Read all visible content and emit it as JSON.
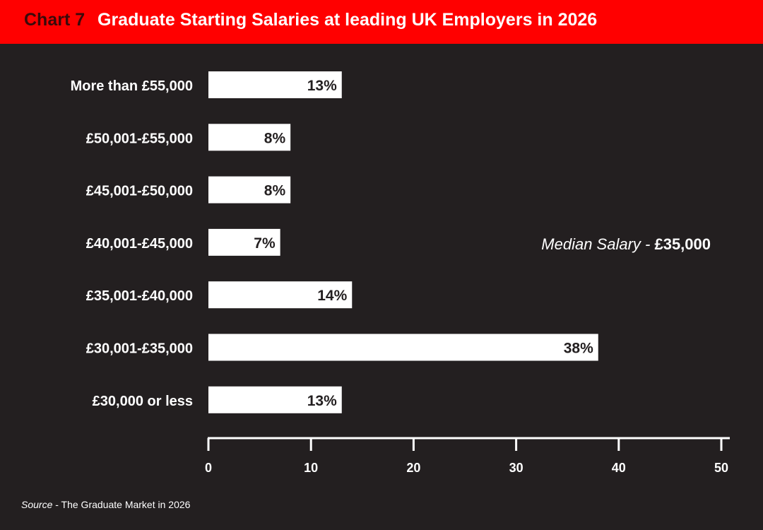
{
  "header": {
    "chart_number": "Chart 7",
    "title": "Graduate Starting Salaries at leading UK Employers in 2026"
  },
  "annotation": {
    "prefix": "Median Salary - ",
    "value": "£35,000"
  },
  "source": {
    "label": "Source",
    "text": " - The Graduate Market in 2026"
  },
  "colors": {
    "background": "#231f20",
    "header": "#ff0000",
    "bar": "#ffffff",
    "text": "#ffffff",
    "bar_label": "#231f20"
  },
  "chart_data": {
    "type": "bar",
    "orientation": "horizontal",
    "title": "Graduate Starting Salaries at leading UK Employers in 2026",
    "categories": [
      "More than £55,000",
      "£50,001-£55,000",
      "£45,001-£50,000",
      "£40,001-£45,000",
      "£35,001-£40,000",
      "£30,001-£35,000",
      "£30,000 or less"
    ],
    "values": [
      13,
      8,
      8,
      7,
      14,
      38,
      13
    ],
    "value_labels": [
      "13%",
      "8%",
      "8%",
      "7%",
      "14%",
      "38%",
      "13%"
    ],
    "xlim": [
      0,
      50
    ],
    "xticks": [
      0,
      10,
      20,
      30,
      40,
      50
    ],
    "xlabel": "",
    "ylabel": "",
    "grid": false,
    "legend": "none"
  }
}
